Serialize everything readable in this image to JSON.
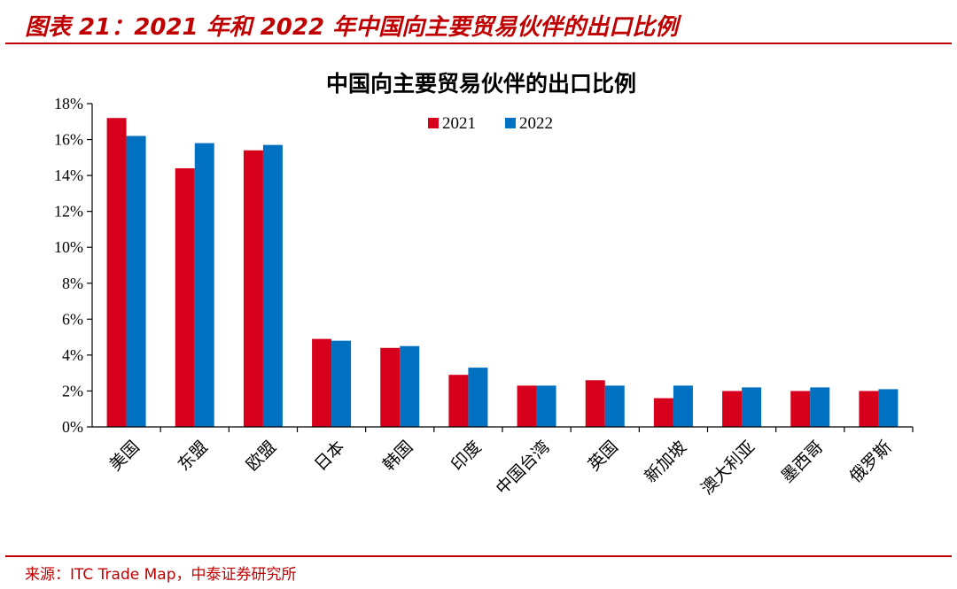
{
  "figure": {
    "title": "图表 21：2021 年和 2022 年中国向主要贸易伙伴的出口比例",
    "source": "来源：ITC Trade Map，中泰证券研究所"
  },
  "colors": {
    "accent": "#c00000",
    "series_2021": "#d7001c",
    "series_2022": "#0070c0"
  },
  "chart_data": {
    "type": "bar",
    "title": "中国向主要贸易伙伴的出口比例",
    "categories": [
      "美国",
      "东盟",
      "欧盟",
      "日本",
      "韩国",
      "印度",
      "中国台湾",
      "英国",
      "新加坡",
      "澳大利亚",
      "墨西哥",
      "俄罗斯"
    ],
    "series": [
      {
        "name": "2021",
        "values": [
          17.2,
          14.4,
          15.4,
          4.9,
          4.4,
          2.9,
          2.3,
          2.6,
          1.6,
          2.0,
          2.0,
          2.0
        ]
      },
      {
        "name": "2022",
        "values": [
          16.2,
          15.8,
          15.7,
          4.8,
          4.5,
          3.3,
          2.3,
          2.3,
          2.3,
          2.2,
          2.2,
          2.1
        ]
      }
    ],
    "ylim": [
      0,
      18
    ],
    "yticks": [
      "0%",
      "2%",
      "4%",
      "6%",
      "8%",
      "10%",
      "12%",
      "14%",
      "16%",
      "18%"
    ],
    "ytick_values": [
      0,
      2,
      4,
      6,
      8,
      10,
      12,
      14,
      16,
      18
    ],
    "legend_position": "top-center",
    "grid": false
  }
}
